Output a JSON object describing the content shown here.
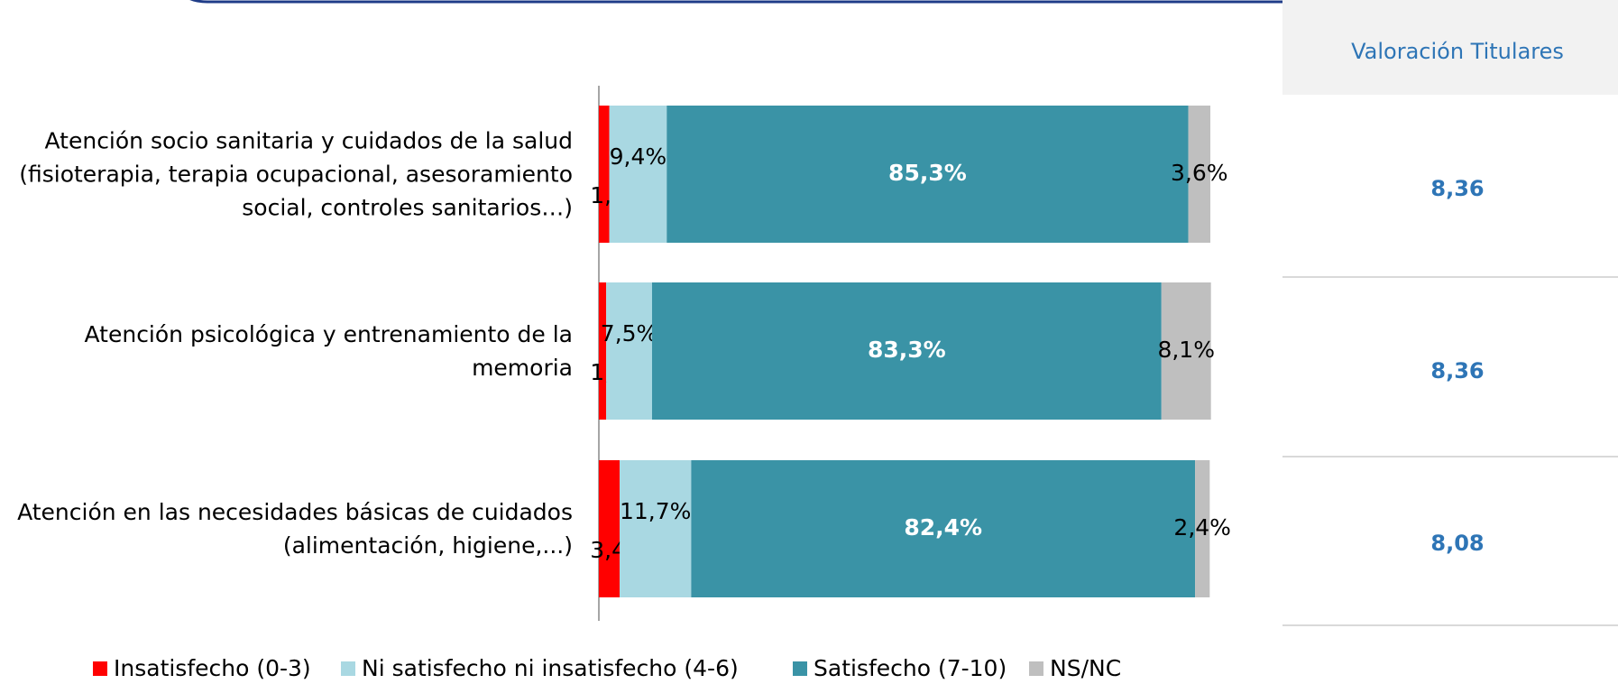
{
  "chart_data": {
    "type": "stacked-barh",
    "categories": [
      "Atención socio sanitaria y cuidados de la salud\n(fisioterapia, terapia ocupacional, asesoramiento\nsocial, controles sanitarios…)",
      "Atención psicológica y entrenamiento de la\nmemoria",
      "Atención en las necesidades básicas de cuidados\n(alimentación,  higiene,...)"
    ],
    "series": [
      {
        "name": "Insatisfecho (0-3)",
        "color": "#ff0000",
        "values": [
          1.7,
          1.2,
          3.4
        ],
        "value_labels": [
          "1,7%",
          "1,2%",
          "3,4%"
        ]
      },
      {
        "name": "Ni satisfecho ni insatisfecho (4-6)",
        "color": "#a9d8e2",
        "values": [
          9.4,
          7.5,
          11.7
        ],
        "value_labels": [
          "9,4%",
          "7,5%",
          "11,7%"
        ]
      },
      {
        "name": "Satisfecho (7-10)",
        "color": "#3a93a6",
        "values": [
          85.3,
          83.3,
          82.4
        ],
        "value_labels": [
          "85,3%",
          "83,3%",
          "82,4%"
        ]
      },
      {
        "name": "NS/NC",
        "color": "#bfbfbf",
        "values": [
          3.6,
          8.1,
          2.4
        ],
        "value_labels": [
          "3,6%",
          "8,1%",
          "2,4%"
        ]
      }
    ],
    "xlim": [
      0,
      100
    ],
    "legend": "bottom"
  },
  "side_table": {
    "header": "Valoración Titulares",
    "rows": [
      "8,36",
      "8,36",
      "8,08"
    ]
  }
}
